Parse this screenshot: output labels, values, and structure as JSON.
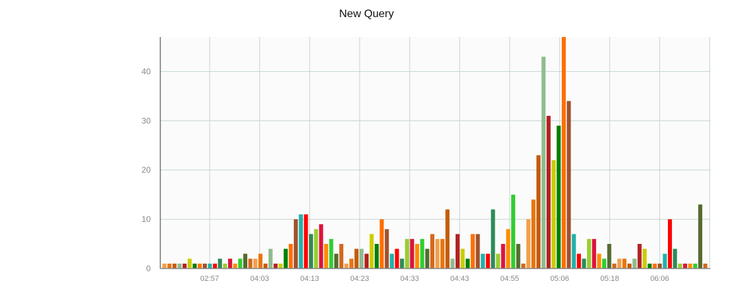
{
  "chart_data": {
    "type": "bar",
    "title": "New Query",
    "xlabel": "",
    "ylabel": "",
    "ylim": [
      0,
      47
    ],
    "yticks": [
      0,
      10,
      20,
      30,
      40
    ],
    "grid": true,
    "legend": "none",
    "xtick_labels": [
      "02:57",
      "04:03",
      "04:13",
      "04:23",
      "04:33",
      "04:43",
      "04:55",
      "05:06",
      "05:18",
      "06:06"
    ],
    "values": [
      1,
      1,
      1,
      1,
      1,
      2,
      1,
      1,
      1,
      1,
      1,
      2,
      1,
      2,
      1,
      2,
      3,
      2,
      2,
      3,
      1,
      4,
      1,
      1,
      4,
      5,
      10,
      11,
      11,
      7,
      8,
      9,
      5,
      6,
      3,
      5,
      1,
      2,
      4,
      4,
      3,
      7,
      5,
      10,
      8,
      3,
      4,
      2,
      6,
      6,
      5,
      6,
      4,
      7,
      6,
      6,
      12,
      2,
      7,
      4,
      2,
      7,
      7,
      3,
      3,
      12,
      3,
      5,
      8,
      15,
      5,
      1,
      10,
      14,
      23,
      43,
      31,
      22,
      29,
      47,
      34,
      7,
      3,
      2,
      6,
      6,
      3,
      2,
      5,
      1,
      2,
      2,
      1,
      2,
      5,
      4,
      1,
      1,
      1,
      3,
      10,
      4,
      1,
      1,
      1,
      1,
      13,
      1
    ],
    "colors": [
      "#f0a04b",
      "#e8750c",
      "#c45b0a",
      "#8fbc8f",
      "#b22222",
      "#cccc00",
      "#008000",
      "#ff6f00",
      "#a0522d",
      "#20b2aa",
      "#ff0000",
      "#2e8b57",
      "#9acd32",
      "#dc143c",
      "#ff8c00",
      "#32cd32",
      "#556b2f",
      "#d2691e"
    ]
  }
}
